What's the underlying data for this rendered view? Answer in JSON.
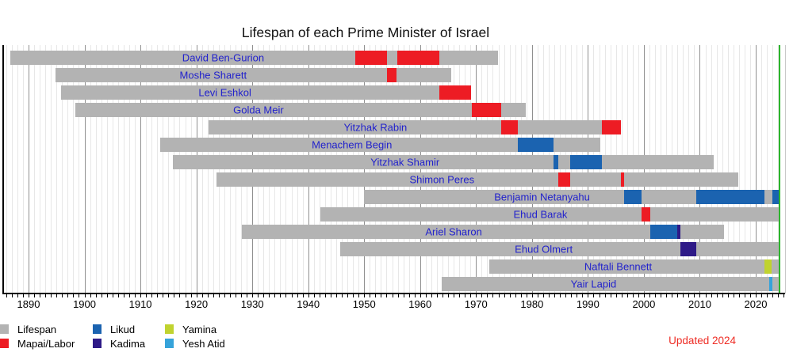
{
  "updated_note": "Updated 2024",
  "colors": {
    "lifespan": "#b3b3b3",
    "mapai": "#ed1c24",
    "likud": "#1b63b0",
    "kadima": "#2e1a87",
    "yamina": "#c0d32f",
    "yeshatid": "#36a3da",
    "today_line": "#2db52d",
    "pm_label": "#2222cc",
    "updated_note": "#ee2c24",
    "grid_minor": "#e7e7e7",
    "grid_decade": "#909090",
    "axis": "#000000"
  },
  "legend": [
    {
      "party": "lifespan",
      "label": "Lifespan"
    },
    {
      "party": "mapai",
      "label": "Mapai/Labor"
    },
    {
      "party": "likud",
      "label": "Likud"
    },
    {
      "party": "kadima",
      "label": "Kadima"
    },
    {
      "party": "yamina",
      "label": "Yamina"
    },
    {
      "party": "yeshatid",
      "label": "Yesh Atid"
    }
  ],
  "chart_data": {
    "type": "bar",
    "subtype": "gantt-lifespan-timeline",
    "title": "Lifespan of each Prime Minister of Israel",
    "x_axis": {
      "tick_year_start": 1886,
      "tick_year_end": 2025,
      "tick_interval_years": 1,
      "decade_labels": [
        1890,
        1900,
        1910,
        1920,
        1930,
        1940,
        1950,
        1960,
        1970,
        1980,
        1990,
        2000,
        2010,
        2020
      ],
      "range": [
        1885.5,
        2025.3
      ]
    },
    "today_year": 2024.25,
    "grid": true,
    "legend_position": "bottom-left",
    "pms": [
      {
        "name": "David Ben-Gurion",
        "born": 1886.8,
        "died": 1973.95,
        "label_year": 1924.8,
        "terms": [
          {
            "start": 1948.37,
            "end": 1954.07,
            "party": "mapai"
          },
          {
            "start": 1955.85,
            "end": 1963.48,
            "party": "mapai"
          }
        ]
      },
      {
        "name": "Moshe Sharett",
        "born": 1894.75,
        "died": 1965.55,
        "label_year": 1923.0,
        "terms": [
          {
            "start": 1954.07,
            "end": 1955.85,
            "party": "mapai"
          }
        ]
      },
      {
        "name": "Levi Eshkol",
        "born": 1895.8,
        "died": 1969.17,
        "label_year": 1925.1,
        "terms": [
          {
            "start": 1963.48,
            "end": 1969.17,
            "party": "mapai"
          }
        ]
      },
      {
        "name": "Golda Meir",
        "born": 1898.35,
        "died": 1978.95,
        "label_year": 1931.1,
        "terms": [
          {
            "start": 1969.2,
            "end": 1974.45,
            "party": "mapai"
          }
        ]
      },
      {
        "name": "Yitzhak Rabin",
        "born": 1922.17,
        "died": 1995.85,
        "label_year": 1952.0,
        "terms": [
          {
            "start": 1974.45,
            "end": 1977.5,
            "party": "mapai"
          },
          {
            "start": 1992.55,
            "end": 1995.85,
            "party": "mapai"
          }
        ]
      },
      {
        "name": "Menachem Begin",
        "born": 1913.6,
        "died": 1992.2,
        "label_year": 1947.8,
        "terms": [
          {
            "start": 1977.5,
            "end": 1983.8,
            "party": "likud"
          }
        ]
      },
      {
        "name": "Yitzhak Shamir",
        "born": 1915.8,
        "died": 2012.55,
        "label_year": 1957.3,
        "terms": [
          {
            "start": 1983.8,
            "end": 1984.75,
            "party": "likud"
          },
          {
            "start": 1986.8,
            "end": 1992.55,
            "party": "likud"
          }
        ]
      },
      {
        "name": "Shimon Peres",
        "born": 1923.6,
        "died": 2016.85,
        "label_year": 1963.9,
        "terms": [
          {
            "start": 1984.75,
            "end": 1986.8,
            "party": "mapai"
          },
          {
            "start": 1995.85,
            "end": 1996.5,
            "party": "mapai"
          }
        ]
      },
      {
        "name": "Benjamin Netanyahu",
        "born": 1949.95,
        "died": null,
        "label_year": 1981.8,
        "terms": [
          {
            "start": 1996.5,
            "end": 1999.55,
            "party": "likud"
          },
          {
            "start": 2009.3,
            "end": 2021.5,
            "party": "likud"
          },
          {
            "start": 2023.0,
            "end": 2024.25,
            "party": "likud"
          }
        ]
      },
      {
        "name": "Ehud Barak",
        "born": 1942.1,
        "died": null,
        "label_year": 1981.5,
        "terms": [
          {
            "start": 1999.55,
            "end": 2001.2,
            "party": "mapai"
          }
        ]
      },
      {
        "name": "Ariel Sharon",
        "born": 1928.15,
        "died": 2014.3,
        "label_year": 1966.0,
        "terms": [
          {
            "start": 2001.2,
            "end": 2005.9,
            "party": "likud"
          },
          {
            "start": 2005.9,
            "end": 2006.5,
            "party": "kadima"
          }
        ]
      },
      {
        "name": "Ehud Olmert",
        "born": 1945.75,
        "died": null,
        "label_year": 1982.1,
        "terms": [
          {
            "start": 2006.5,
            "end": 2009.3,
            "party": "kadima"
          }
        ]
      },
      {
        "name": "Naftali Bennett",
        "born": 1972.4,
        "died": null,
        "label_year": 1995.4,
        "terms": [
          {
            "start": 2021.5,
            "end": 2022.85,
            "party": "yamina"
          }
        ]
      },
      {
        "name": "Yair Lapid",
        "born": 1963.85,
        "died": null,
        "label_year": 1991.0,
        "terms": [
          {
            "start": 2022.45,
            "end": 2023.0,
            "party": "yeshatid"
          }
        ]
      }
    ]
  }
}
